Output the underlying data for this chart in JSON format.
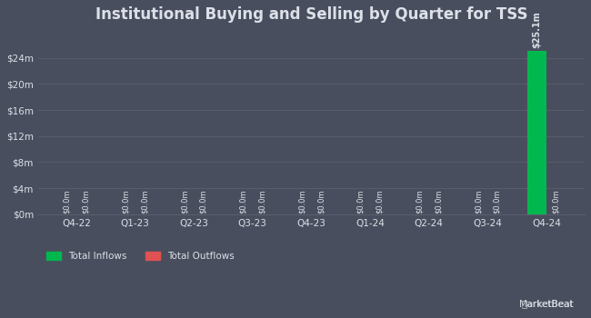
{
  "title": "Institutional Buying and Selling by Quarter for TSS",
  "quarters": [
    "Q4-22",
    "Q1-23",
    "Q2-23",
    "Q3-23",
    "Q4-23",
    "Q1-24",
    "Q2-24",
    "Q3-24",
    "Q4-24"
  ],
  "inflows": [
    0.0,
    0.0,
    0.0,
    0.0,
    0.0,
    0.0,
    0.0,
    0.0,
    25.1
  ],
  "outflows": [
    0.0,
    0.0,
    0.0,
    0.0,
    0.0,
    0.0,
    0.0,
    0.0,
    0.0
  ],
  "inflow_color": "#00b84d",
  "outflow_color": "#e05252",
  "bg_color": "#494e5e",
  "plot_bg_color": "#494e5e",
  "gridline_color": "#5a5f6e",
  "text_color": "#dce0e8",
  "bar_width": 0.32,
  "ylim": [
    0,
    28
  ],
  "yticks": [
    0,
    4,
    8,
    12,
    16,
    20,
    24
  ],
  "ytick_labels": [
    "$0m",
    "$4m",
    "$8m",
    "$12m",
    "$16m",
    "$20m",
    "$24m"
  ],
  "title_fontsize": 12,
  "axis_fontsize": 7.5,
  "legend_fontsize": 7.5,
  "annotation_fontsize": 6.0,
  "annotation_large_fontsize": 7.0
}
